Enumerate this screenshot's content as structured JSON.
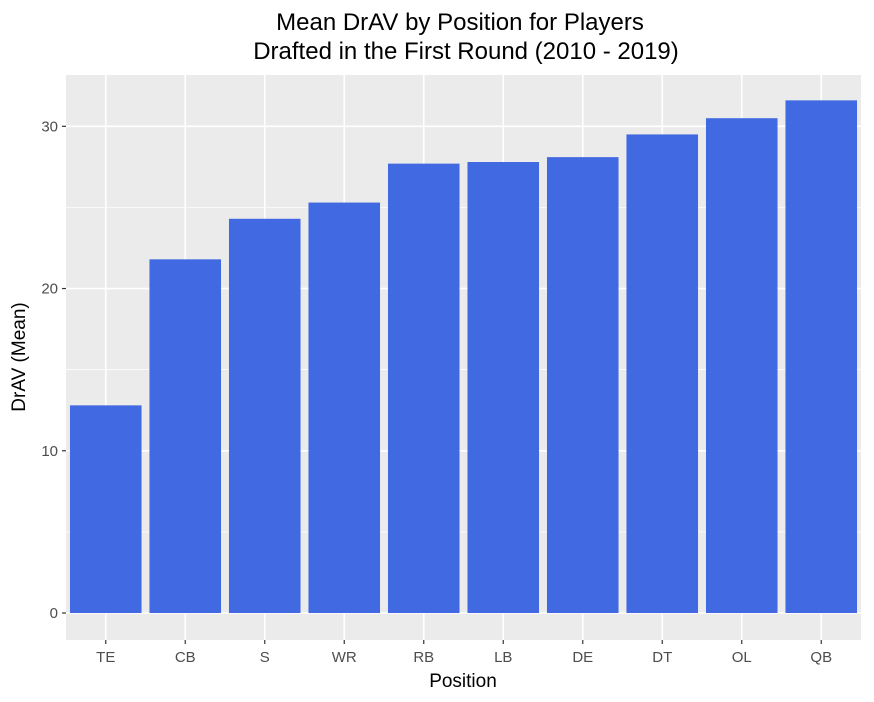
{
  "chart_data": {
    "type": "bar",
    "title": "Mean DrAV by Position for Players",
    "subtitle": "Drafted in the First Round (2010 - 2019)",
    "xlabel": "Position",
    "ylabel": "DrAV (Mean)",
    "categories": [
      "TE",
      "CB",
      "S",
      "WR",
      "RB",
      "LB",
      "DE",
      "DT",
      "OL",
      "QB"
    ],
    "values": [
      12.8,
      21.8,
      24.3,
      25.3,
      27.7,
      27.8,
      28.1,
      29.5,
      30.5,
      31.6
    ],
    "ylim": [
      0,
      33.2
    ],
    "yticks": [
      0,
      10,
      20,
      30
    ],
    "grid": true,
    "bar_color": "#4169e1",
    "panel_color": "#ebebeb",
    "grid_color": "#ffffff"
  }
}
